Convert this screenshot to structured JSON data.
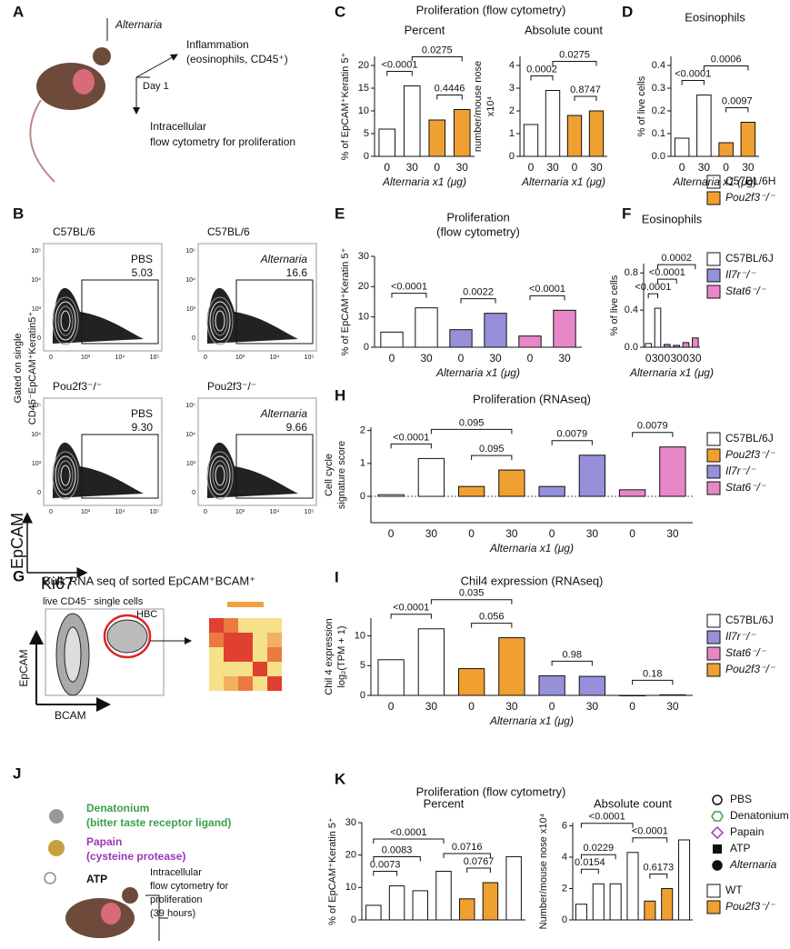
{
  "panel_letters": [
    "A",
    "B",
    "C",
    "D",
    "E",
    "F",
    "G",
    "H",
    "I",
    "J",
    "K"
  ],
  "panel_a": {
    "stimulus": "Alternaria",
    "outcome_1": [
      "Inflammation",
      "(eosinophils, CD45⁺)"
    ],
    "time": "Day 1",
    "outcome_2": [
      "Intracellular",
      "flow cytometry for proliferation"
    ]
  },
  "panel_b": {
    "gate_label": [
      "Gated on single",
      "CD45⁻EpCAM⁺Keratin5⁺"
    ],
    "plots": [
      {
        "strain": "C57BL/6",
        "treatment": "PBS",
        "gate": "5.03"
      },
      {
        "strain": "C57BL/6",
        "treatment": "Alternaria",
        "gate": "16.6"
      },
      {
        "strain": "Pou2f3⁻/⁻",
        "treatment": "PBS",
        "gate": "9.30"
      },
      {
        "strain": "Pou2f3⁻/⁻",
        "treatment": "Alternaria",
        "gate": "9.66"
      }
    ],
    "y_ticks": [
      "10⁵",
      "10⁴",
      "10³",
      "0"
    ],
    "x_ticks": [
      "0",
      "10³",
      "10⁴",
      "10⁵"
    ],
    "y_axis": "EpCAM",
    "x_axis": "Ki67"
  },
  "panel_c": {
    "title": "Proliferation (flow cytometry)"
  },
  "panel_g": {
    "title": "Bulk RNA seq of sorted EpCAM⁺BCAM⁺",
    "subtitle": "live CD45⁻ single cells",
    "gate": "HBC",
    "y_axis": "EpCAM",
    "x_axis": "BCAM"
  },
  "panel_j": {
    "compounds": [
      {
        "name": "Denatonium",
        "note": "(bitter taste receptor ligand)",
        "color": "#3aa04a"
      },
      {
        "name": "Papain",
        "note": "(cysteine protease)",
        "color": "#9b36b7"
      },
      {
        "name": "ATP",
        "color": "#111111"
      }
    ],
    "outcome": [
      "Intracellular",
      "flow cytometry for",
      "proliferation",
      "(39 hours)"
    ]
  },
  "panel_k": {
    "title": "Proliferation (flow cytometry)"
  },
  "legends": [
    {
      "items": [
        {
          "name": "C57BL/6H",
          "color": "#ffffff"
        },
        {
          "name": "Pou2f3⁻/⁻",
          "color": "#f0a030"
        }
      ]
    },
    {
      "items": [
        {
          "name": "C57BL/6J",
          "color": "#ffffff"
        },
        {
          "name": "Il7r⁻/⁻",
          "color": "#9590d8"
        },
        {
          "name": "Stat6⁻/⁻",
          "color": "#e887c8"
        }
      ]
    },
    {
      "items": [
        {
          "name": "C57BL/6J",
          "color": "#ffffff"
        },
        {
          "name": "Pou2f3⁻/⁻",
          "color": "#f0a030"
        },
        {
          "name": "Il7r⁻/⁻",
          "color": "#9590d8"
        },
        {
          "name": "Stat6⁻/⁻",
          "color": "#e887c8"
        }
      ]
    },
    {
      "items": [
        {
          "name": "C57BL/6J",
          "color": "#ffffff"
        },
        {
          "name": "Il7r⁻/⁻",
          "color": "#9590d8"
        },
        {
          "name": "Stat6⁻/⁻",
          "color": "#e887c8"
        },
        {
          "name": "Pou2f3⁻/⁻",
          "color": "#f0a030"
        }
      ]
    },
    {
      "items": [
        {
          "name": "PBS",
          "color": "#111111",
          "shape": "circle-open"
        },
        {
          "name": "Denatonium",
          "color": "#3aa04a",
          "shape": "hexagon-open"
        },
        {
          "name": "Papain",
          "color": "#9b36b7",
          "shape": "diamond-open"
        },
        {
          "name": "ATP",
          "color": "#111111",
          "shape": "square"
        },
        {
          "name": "Alternaria",
          "color": "#111111",
          "shape": "circle"
        }
      ]
    },
    {
      "items": [
        {
          "name": "WT",
          "color": "#ffffff"
        },
        {
          "name": "Pou2f3⁻/⁻",
          "color": "#f0a030"
        }
      ]
    }
  ],
  "chart_data": [
    {
      "type": "bar",
      "title": [
        "Percent"
      ],
      "ylabel": [
        "% of EpCAM⁺Keratin 5⁺"
      ],
      "xlabel": "Alternaria x1 (μg)",
      "categories": [
        "0",
        "30",
        "0",
        "30"
      ],
      "values": [
        6,
        15.5,
        8,
        10.3
      ],
      "colors": [
        "#ffffff",
        "#ffffff",
        "#f0a030",
        "#f0a030"
      ],
      "ylim": [
        0,
        22
      ],
      "yticks": [
        0,
        5,
        10,
        15,
        20
      ],
      "comparisons": [
        {
          "from": 0,
          "to": 1,
          "label": "<0.0001"
        },
        {
          "from": 2,
          "to": 3,
          "label": "0.4446"
        },
        {
          "from": 1,
          "to": 3,
          "label": "0.0275"
        }
      ]
    },
    {
      "type": "bar",
      "title": [
        "Absolute count"
      ],
      "ylabel": [
        "number/mouse nose",
        "x10⁴"
      ],
      "xlabel": "Alternaria x1 (μg)",
      "categories": [
        "0",
        "30",
        "0",
        "30"
      ],
      "values": [
        1.4,
        2.9,
        1.8,
        2.0
      ],
      "colors": [
        "#ffffff",
        "#ffffff",
        "#f0a030",
        "#f0a030"
      ],
      "ylim": [
        0,
        4.4
      ],
      "yticks": [
        0,
        1,
        2,
        3,
        4
      ],
      "comparisons": [
        {
          "from": 0,
          "to": 1,
          "label": "0.0002"
        },
        {
          "from": 2,
          "to": 3,
          "label": "0.8747"
        },
        {
          "from": 1,
          "to": 3,
          "label": "0.0275"
        }
      ]
    },
    {
      "type": "bar",
      "title": [
        "Eosinophils"
      ],
      "ylabel": [
        "% of live cells"
      ],
      "xlabel": "Alternaria x1 (μg)",
      "categories": [
        "0",
        "30",
        "0",
        "30"
      ],
      "values": [
        0.08,
        0.27,
        0.06,
        0.15
      ],
      "colors": [
        "#ffffff",
        "#ffffff",
        "#f0a030",
        "#f0a030"
      ],
      "ylim": [
        0,
        0.44
      ],
      "yticks": [
        {
          "value": 0,
          "label": "0.0"
        },
        0.1,
        0.2,
        0.3,
        0.4
      ],
      "comparisons": [
        {
          "from": 0,
          "to": 1,
          "label": "<0.0001"
        },
        {
          "from": 2,
          "to": 3,
          "label": "0.0097"
        },
        {
          "from": 1,
          "to": 3,
          "label": "0.0006"
        }
      ]
    },
    {
      "type": "bar",
      "title": [
        "Proliferation",
        "(flow cytometry)"
      ],
      "ylabel": [
        "% of EpCAM⁺Keratin 5⁺"
      ],
      "xlabel": "Alternaria x1 (μg)",
      "categories": [
        "0",
        "30",
        "0",
        "30",
        "0",
        "30"
      ],
      "values": [
        5,
        13,
        5.8,
        11.2,
        3.7,
        12.2
      ],
      "colors": [
        "#ffffff",
        "#ffffff",
        "#9590d8",
        "#9590d8",
        "#e887c8",
        "#e887c8"
      ],
      "ylim": [
        0,
        30
      ],
      "yticks": [
        0,
        10,
        20,
        30
      ],
      "comparisons": [
        {
          "from": 0,
          "to": 1,
          "label": "<0.0001"
        },
        {
          "from": 2,
          "to": 3,
          "label": "0.0022"
        },
        {
          "from": 4,
          "to": 5,
          "label": "<0.0001"
        }
      ]
    },
    {
      "type": "bar",
      "title": [
        "Eosinophils"
      ],
      "ylabel": [
        "% of live cells"
      ],
      "xlabel": "Alternaria x1 (μg)",
      "categories": [
        "0",
        "30",
        "0",
        "30",
        "0",
        "30"
      ],
      "values": [
        0.04,
        0.42,
        0.03,
        0.02,
        0.05,
        0.1
      ],
      "colors": [
        "#ffffff",
        "#ffffff",
        "#9590d8",
        "#9590d8",
        "#e887c8",
        "#e887c8"
      ],
      "ylim": [
        0,
        0.9
      ],
      "yticks": [
        {
          "value": 0,
          "label": "0.0"
        },
        0.4,
        0.8
      ],
      "comparisons": [
        {
          "from": 0,
          "to": 1,
          "label": "<0.0001"
        },
        {
          "from": 1,
          "to": 3,
          "label": "<0.0001"
        },
        {
          "from": 1,
          "to": 5,
          "label": "0.0002"
        }
      ]
    },
    {
      "type": "bar",
      "title": [
        "Proliferation (RNAseq)"
      ],
      "ylabel": [
        "Cell cycle",
        "signature score"
      ],
      "xlabel": "Alternaria x1 (μg)",
      "categories": [
        "0",
        "30",
        "0",
        "30",
        "0",
        "30",
        "0",
        "30"
      ],
      "values": [
        0.05,
        1.15,
        0.3,
        0.8,
        0.3,
        1.25,
        0.2,
        1.5
      ],
      "colors": [
        "#ffffff",
        "#ffffff",
        "#f0a030",
        "#f0a030",
        "#9590d8",
        "#9590d8",
        "#e887c8",
        "#e887c8"
      ],
      "ylim": [
        -0.8,
        2.1
      ],
      "yticks": [
        0,
        1,
        2
      ],
      "zero_line": true,
      "comparisons": [
        {
          "from": 0,
          "to": 1,
          "label": "<0.0001"
        },
        {
          "from": 2,
          "to": 3,
          "label": "0.095"
        },
        {
          "from": 4,
          "to": 5,
          "label": "0.0079"
        },
        {
          "from": 6,
          "to": 7,
          "label": "0.0079"
        },
        {
          "from": 1,
          "to": 3,
          "label": "0.095"
        }
      ]
    },
    {
      "type": "bar",
      "title": [
        "Chil4 expression (RNAseq)"
      ],
      "ylabel": [
        "Chil 4 expression",
        "log₂(TPM + 1)"
      ],
      "xlabel": "Alternaria x1 (μg)",
      "categories": [
        "0",
        "30",
        "0",
        "30",
        "0",
        "30",
        "0",
        "30"
      ],
      "values": [
        6,
        11.2,
        4.5,
        9.7,
        3.3,
        3.2,
        0,
        0.1
      ],
      "colors": [
        "#ffffff",
        "#ffffff",
        "#f0a030",
        "#f0a030",
        "#9590d8",
        "#9590d8",
        "#e887c8",
        "#e887c8"
      ],
      "ylim": [
        0,
        13
      ],
      "yticks": [
        0,
        5,
        10
      ],
      "comparisons": [
        {
          "from": 0,
          "to": 1,
          "label": "<0.0001"
        },
        {
          "from": 2,
          "to": 3,
          "label": "0.056"
        },
        {
          "from": 4,
          "to": 5,
          "label": "0.98"
        },
        {
          "from": 6,
          "to": 7,
          "label": "0.18"
        },
        {
          "from": 1,
          "to": 3,
          "label": "0.035"
        }
      ]
    },
    {
      "type": "bar",
      "title": [
        "Percent"
      ],
      "ylabel": [
        "% of EpCAM⁺Keratin 5⁺"
      ],
      "categories": [
        null,
        null,
        null,
        null,
        null,
        null,
        null
      ],
      "values": [
        4.5,
        10.5,
        9,
        15,
        6.5,
        11.5,
        19.5
      ],
      "colors": [
        "#ffffff",
        "#ffffff",
        "#ffffff",
        "#ffffff",
        "#f0a030",
        "#f0a030",
        "#ffffff"
      ],
      "ylim": [
        0,
        30
      ],
      "yticks": [
        0,
        10,
        20,
        30
      ],
      "comparisons": [
        {
          "from": 0,
          "to": 1,
          "label": "0.0073"
        },
        {
          "from": 4,
          "to": 5,
          "label": "0.0767"
        },
        {
          "from": 0,
          "to": 2,
          "label": "0.0083"
        },
        {
          "from": 3,
          "to": 5,
          "label": "0.0716"
        },
        {
          "from": 0,
          "to": 3,
          "label": "<0.0001"
        }
      ]
    },
    {
      "type": "bar",
      "title": [
        "Absolute count"
      ],
      "ylabel": [
        "Number/mouse nose x10⁴"
      ],
      "categories": [
        null,
        null,
        null,
        null,
        null,
        null,
        null
      ],
      "values": [
        1,
        2.3,
        2.3,
        4.3,
        1.2,
        2,
        5.1
      ],
      "colors": [
        "#ffffff",
        "#ffffff",
        "#ffffff",
        "#ffffff",
        "#f0a030",
        "#f0a030",
        "#ffffff"
      ],
      "ylim": [
        0,
        6.2
      ],
      "yticks": [
        0,
        2,
        4,
        6
      ],
      "comparisons": [
        {
          "from": 0,
          "to": 1,
          "label": "0.0154"
        },
        {
          "from": 4,
          "to": 5,
          "label": "0.6173"
        },
        {
          "from": 0,
          "to": 2,
          "label": "0.0229"
        },
        {
          "from": 3,
          "to": 5,
          "label": "<0.0001"
        },
        {
          "from": 0,
          "to": 3,
          "label": "<0.0001"
        }
      ]
    }
  ]
}
